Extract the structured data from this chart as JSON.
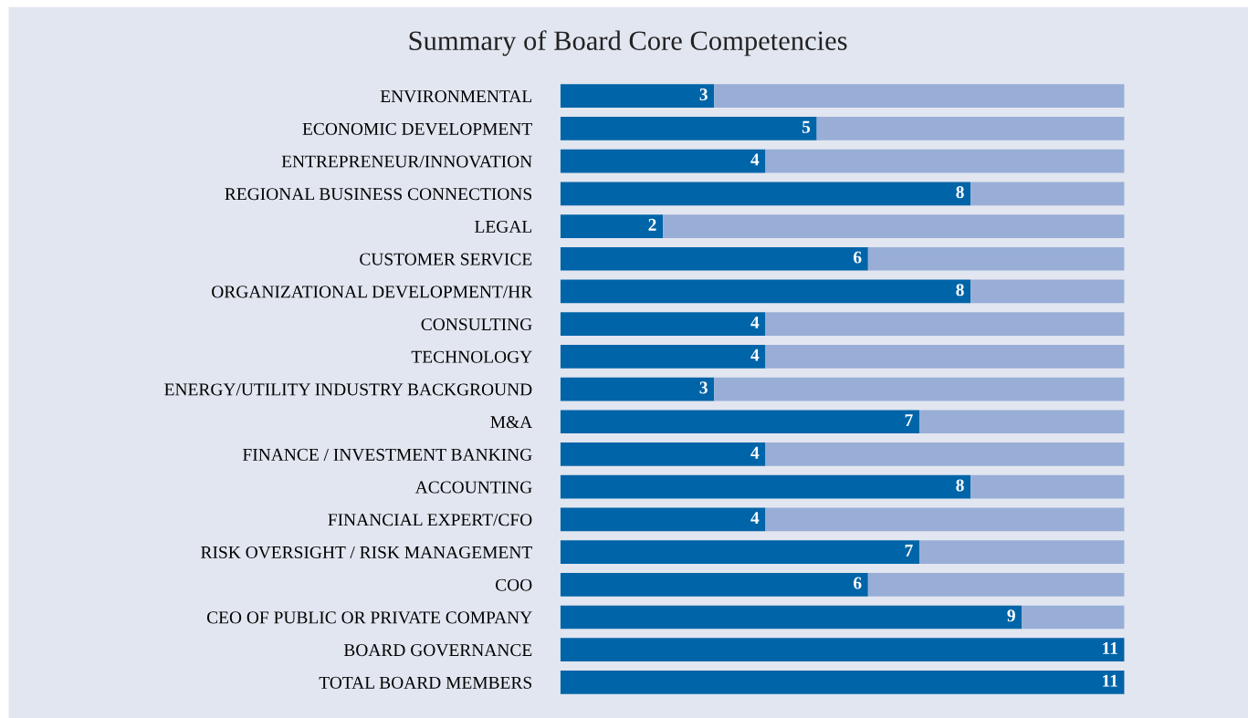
{
  "chart_data": {
    "type": "bar",
    "title": "Summary of Board Core Competencies",
    "orientation": "horizontal",
    "stacked": true,
    "categories": [
      "ENVIRONMENTAL",
      "ECONOMIC DEVELOPMENT",
      "ENTREPRENEUR/INNOVATION",
      "REGIONAL BUSINESS CONNECTIONS",
      "LEGAL",
      "CUSTOMER SERVICE",
      "ORGANIZATIONAL DEVELOPMENT/HR",
      "CONSULTING",
      "TECHNOLOGY",
      "ENERGY/UTILITY INDUSTRY BACKGROUND",
      "M&A",
      "FINANCE / INVESTMENT BANKING",
      "ACCOUNTING",
      "FINANCIAL EXPERT/CFO",
      "RISK OVERSIGHT / RISK MANAGEMENT",
      "COO",
      "CEO OF PUBLIC OR PRIVATE COMPANY",
      "BOARD GOVERNANCE",
      "TOTAL BOARD MEMBERS"
    ],
    "series": [
      {
        "color": "#0064a8",
        "values": [
          3,
          5,
          4,
          8,
          2,
          6,
          8,
          4,
          4,
          3,
          7,
          4,
          8,
          4,
          7,
          6,
          9,
          11,
          11
        ],
        "value_labels": [
          "3",
          "5",
          "4",
          "8",
          "2",
          "6",
          "8",
          "4",
          "4",
          "3",
          "7",
          "4",
          "8",
          "4",
          "7",
          "6",
          "9",
          "11",
          "11"
        ]
      },
      {
        "color": "#98aed6",
        "values": [
          8,
          6,
          7,
          3,
          9,
          5,
          3,
          7,
          7,
          8,
          4,
          7,
          3,
          7,
          4,
          5,
          2,
          0,
          0
        ]
      }
    ],
    "xlim": [
      0,
      11
    ],
    "tick_labels": "y",
    "grid": false,
    "legend": false
  }
}
